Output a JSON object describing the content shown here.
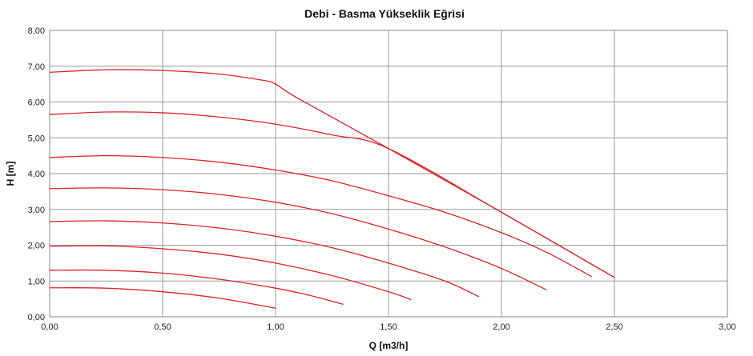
{
  "chart_data": {
    "type": "line",
    "title": "Debi - Basma Yükseklik Eğrisi",
    "xlabel": "Q [m3/h]",
    "ylabel": "H [m]",
    "xlim": [
      0,
      3
    ],
    "ylim": [
      0,
      8
    ],
    "x_ticks": [
      "0,00",
      "0,50",
      "1,00",
      "1,50",
      "2,00",
      "2,50",
      "3,00"
    ],
    "y_ticks": [
      "0,00",
      "1,00",
      "2,00",
      "3,00",
      "4,00",
      "5,00",
      "6,00",
      "7,00",
      "8,00"
    ],
    "grid": true,
    "line_color": "#d9242a",
    "series": [
      {
        "points": [
          [
            0,
            6.83
          ],
          [
            0.25,
            6.9
          ],
          [
            0.5,
            6.88
          ],
          [
            0.75,
            6.78
          ],
          [
            0.95,
            6.6
          ],
          [
            1.0,
            6.5
          ],
          [
            1.1,
            6.1
          ],
          [
            1.5,
            4.7
          ],
          [
            2.0,
            2.92
          ],
          [
            2.5,
            1.1
          ]
        ]
      },
      {
        "points": [
          [
            0,
            5.65
          ],
          [
            0.25,
            5.72
          ],
          [
            0.5,
            5.7
          ],
          [
            0.75,
            5.58
          ],
          [
            1.0,
            5.38
          ],
          [
            1.25,
            5.08
          ],
          [
            1.5,
            4.7
          ],
          [
            2.0,
            2.92
          ],
          [
            2.5,
            1.1
          ]
        ]
      },
      {
        "points": [
          [
            0,
            4.45
          ],
          [
            0.25,
            4.5
          ],
          [
            0.5,
            4.45
          ],
          [
            0.75,
            4.32
          ],
          [
            1.0,
            4.1
          ],
          [
            1.25,
            3.8
          ],
          [
            1.5,
            3.38
          ],
          [
            1.75,
            2.92
          ],
          [
            2.0,
            2.35
          ],
          [
            2.2,
            1.8
          ],
          [
            2.4,
            1.12
          ]
        ]
      },
      {
        "points": [
          [
            0,
            3.58
          ],
          [
            0.25,
            3.6
          ],
          [
            0.5,
            3.55
          ],
          [
            0.75,
            3.42
          ],
          [
            1.0,
            3.2
          ],
          [
            1.25,
            2.88
          ],
          [
            1.5,
            2.45
          ],
          [
            1.75,
            1.95
          ],
          [
            2.0,
            1.35
          ],
          [
            2.2,
            0.75
          ]
        ]
      },
      {
        "points": [
          [
            0,
            2.66
          ],
          [
            0.25,
            2.68
          ],
          [
            0.5,
            2.62
          ],
          [
            0.75,
            2.48
          ],
          [
            1.0,
            2.25
          ],
          [
            1.25,
            1.93
          ],
          [
            1.5,
            1.5
          ],
          [
            1.75,
            1.0
          ],
          [
            1.9,
            0.56
          ]
        ]
      },
      {
        "points": [
          [
            0,
            1.97
          ],
          [
            0.25,
            1.98
          ],
          [
            0.5,
            1.9
          ],
          [
            0.75,
            1.75
          ],
          [
            1.0,
            1.5
          ],
          [
            1.25,
            1.15
          ],
          [
            1.5,
            0.7
          ],
          [
            1.6,
            0.48
          ]
        ]
      },
      {
        "points": [
          [
            0,
            1.3
          ],
          [
            0.25,
            1.3
          ],
          [
            0.5,
            1.22
          ],
          [
            0.75,
            1.05
          ],
          [
            1.0,
            0.8
          ],
          [
            1.15,
            0.6
          ],
          [
            1.3,
            0.35
          ]
        ]
      },
      {
        "points": [
          [
            0,
            0.81
          ],
          [
            0.25,
            0.8
          ],
          [
            0.5,
            0.7
          ],
          [
            0.75,
            0.52
          ],
          [
            1.0,
            0.24
          ]
        ]
      }
    ]
  }
}
